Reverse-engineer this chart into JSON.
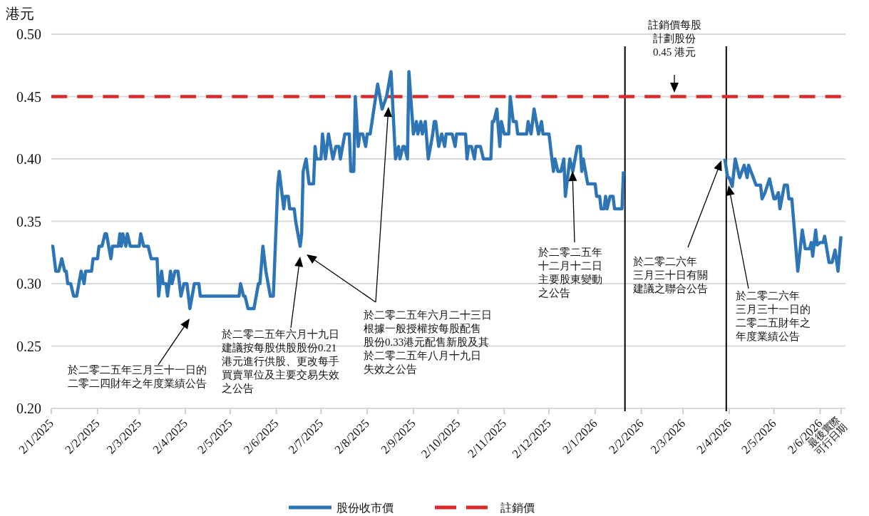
{
  "chart_data": {
    "type": "line",
    "ylabel": "港元",
    "xlim": [
      "2025-01-02",
      "2026-06-19"
    ],
    "xticks": [
      {
        "value": "2025-01-02",
        "label": "2/1/2025"
      },
      {
        "value": "2025-02-02",
        "label": "2/2/2025"
      },
      {
        "value": "2025-03-02",
        "label": "2/3/2025"
      },
      {
        "value": "2025-04-02",
        "label": "2/4/2025"
      },
      {
        "value": "2025-05-02",
        "label": "2/5/2025"
      },
      {
        "value": "2025-06-02",
        "label": "2/6/2025"
      },
      {
        "value": "2025-07-02",
        "label": "2/7/2025"
      },
      {
        "value": "2025-08-02",
        "label": "2/8/2025"
      },
      {
        "value": "2025-09-02",
        "label": "2/9/2025"
      },
      {
        "value": "2025-10-02",
        "label": "2/10/2025"
      },
      {
        "value": "2025-11-02",
        "label": "2/11/2025"
      },
      {
        "value": "2025-12-02",
        "label": "2/12/2025"
      },
      {
        "value": "2026-01-02",
        "label": "2/1/2026"
      },
      {
        "value": "2026-02-02",
        "label": "2/2/2026"
      },
      {
        "value": "2026-03-02",
        "label": "2/3/2026"
      },
      {
        "value": "2026-04-02",
        "label": "2/4/2026"
      },
      {
        "value": "2026-05-02",
        "label": "2/5/2026"
      },
      {
        "value": "2026-06-02",
        "label": "2/6/2026"
      },
      {
        "value": "2026-06-16",
        "label": "最後實際\n可行日期"
      }
    ],
    "ylim": [
      0.2,
      0.5
    ],
    "yticks": [
      {
        "value": 0.2,
        "label": "0.20"
      },
      {
        "value": 0.25,
        "label": "0.25"
      },
      {
        "value": 0.3,
        "label": "0.30"
      },
      {
        "value": 0.35,
        "label": "0.35"
      },
      {
        "value": 0.4,
        "label": "0.40"
      },
      {
        "value": 0.45,
        "label": "0.45"
      },
      {
        "value": 0.5,
        "label": "0.50"
      }
    ],
    "grid": "y",
    "legend": "bottom",
    "marker": "none",
    "series": [
      {
        "name": "股份收市價",
        "color": "#2e75b6",
        "line_style": "solid",
        "x": [
          "2025-01-02",
          "2025-01-03",
          "2025-01-05",
          "2025-01-07",
          "2025-01-09",
          "2025-01-11",
          "2025-01-12",
          "2025-01-13",
          "2025-01-15",
          "2025-01-17",
          "2025-01-19",
          "2025-01-22",
          "2025-01-24",
          "2025-01-25",
          "2025-01-29",
          "2025-01-30",
          "2025-02-02",
          "2025-02-03",
          "2025-02-05",
          "2025-02-07",
          "2025-02-08",
          "2025-02-11",
          "2025-02-12",
          "2025-02-16",
          "2025-02-17",
          "2025-02-18",
          "2025-02-19",
          "2025-02-21",
          "2025-02-22",
          "2025-02-24",
          "2025-03-02",
          "2025-03-03",
          "2025-03-05",
          "2025-03-08",
          "2025-03-10",
          "2025-03-14",
          "2025-03-15",
          "2025-03-17",
          "2025-03-18",
          "2025-03-20",
          "2025-03-21",
          "2025-03-23",
          "2025-03-24",
          "2025-03-26",
          "2025-03-28",
          "2025-03-30",
          "2025-04-01",
          "2025-04-03",
          "2025-04-05",
          "2025-04-08",
          "2025-04-11",
          "2025-04-12",
          "2025-05-08",
          "2025-05-09",
          "2025-05-11",
          "2025-05-12",
          "2025-05-14",
          "2025-05-18",
          "2025-05-21",
          "2025-05-22",
          "2025-05-24",
          "2025-05-26",
          "2025-05-29",
          "2025-05-31",
          "2025-06-03",
          "2025-06-04",
          "2025-06-07",
          "2025-06-08",
          "2025-06-10",
          "2025-06-11",
          "2025-06-14",
          "2025-06-15",
          "2025-06-18",
          "2025-06-19",
          "2025-06-20",
          "2025-06-22",
          "2025-06-24",
          "2025-06-27",
          "2025-06-28",
          "2025-06-29",
          "2025-07-02",
          "2025-07-03",
          "2025-07-05",
          "2025-07-07",
          "2025-07-10",
          "2025-07-12",
          "2025-07-14",
          "2025-07-15",
          "2025-07-18",
          "2025-07-21",
          "2025-07-22",
          "2025-07-24",
          "2025-07-25",
          "2025-07-27",
          "2025-07-28",
          "2025-07-30",
          "2025-08-01",
          "2025-08-02",
          "2025-08-04",
          "2025-08-09",
          "2025-08-12",
          "2025-08-15",
          "2025-08-18",
          "2025-08-21",
          "2025-08-23",
          "2025-08-24",
          "2025-08-26",
          "2025-08-27",
          "2025-08-29",
          "2025-08-30",
          "2025-09-02",
          "2025-09-04",
          "2025-09-05",
          "2025-09-07",
          "2025-09-08",
          "2025-09-10",
          "2025-09-12",
          "2025-09-15",
          "2025-09-16",
          "2025-09-17",
          "2025-09-19",
          "2025-09-21",
          "2025-09-23",
          "2025-09-24",
          "2025-09-28",
          "2025-09-30",
          "2025-10-01",
          "2025-10-07",
          "2025-10-08",
          "2025-10-09",
          "2025-10-11",
          "2025-10-13",
          "2025-10-14",
          "2025-10-17",
          "2025-10-19",
          "2025-10-24",
          "2025-10-25",
          "2025-10-26",
          "2025-10-28",
          "2025-10-30",
          "2025-10-31",
          "2025-11-02",
          "2025-11-05",
          "2025-11-06",
          "2025-11-08",
          "2025-11-10",
          "2025-11-11",
          "2025-11-17",
          "2025-11-18",
          "2025-11-20",
          "2025-11-22",
          "2025-11-25",
          "2025-11-27",
          "2025-11-28",
          "2025-12-02",
          "2025-12-03",
          "2025-12-05",
          "2025-12-06",
          "2025-12-08",
          "2025-12-10",
          "2025-12-12",
          "2025-12-13",
          "2025-12-16",
          "2025-12-18",
          "2025-12-21",
          "2025-12-23",
          "2025-12-24",
          "2025-12-25",
          "2025-12-28",
          "2026-01-02",
          "2026-01-03",
          "2026-01-05",
          "2026-01-06",
          "2026-01-08",
          "2026-01-09",
          "2026-01-10",
          "2026-01-12",
          "2026-01-14",
          "2026-01-15",
          "2026-01-20",
          "2026-01-21",
          "2026-02-25",
          "2026-03-30",
          "2026-04-01",
          "2026-04-02",
          "2026-04-04",
          "2026-04-06",
          "2026-04-09",
          "2026-04-12",
          "2026-04-14",
          "2026-04-15",
          "2026-04-20",
          "2026-04-23",
          "2026-04-24",
          "2026-04-26",
          "2026-04-29",
          "2026-05-02",
          "2026-05-03",
          "2026-05-05",
          "2026-05-06",
          "2026-05-09",
          "2026-05-11",
          "2026-05-12",
          "2026-05-14",
          "2026-05-18",
          "2026-05-21",
          "2026-05-23",
          "2026-05-26",
          "2026-05-27",
          "2026-05-28",
          "2026-05-30",
          "2026-05-31",
          "2026-06-02",
          "2026-06-04",
          "2026-06-05",
          "2026-06-08",
          "2026-06-10",
          "2026-06-12",
          "2026-06-14",
          "2026-06-16"
        ],
        "values": [
          0.33,
          0.33,
          0.31,
          0.31,
          0.32,
          0.31,
          0.31,
          0.3,
          0.3,
          0.29,
          0.29,
          0.31,
          0.3,
          0.31,
          0.31,
          0.32,
          0.32,
          0.33,
          0.33,
          0.34,
          0.34,
          0.32,
          0.33,
          0.33,
          0.34,
          0.33,
          0.34,
          0.33,
          0.34,
          0.33,
          0.33,
          0.34,
          0.33,
          0.33,
          0.32,
          0.32,
          0.29,
          0.31,
          0.3,
          0.3,
          0.29,
          0.31,
          0.3,
          0.31,
          0.31,
          0.29,
          0.3,
          0.3,
          0.28,
          0.3,
          0.3,
          0.29,
          0.29,
          0.3,
          0.29,
          0.29,
          0.28,
          0.28,
          0.3,
          0.3,
          0.33,
          0.31,
          0.29,
          0.29,
          0.38,
          0.39,
          0.36,
          0.37,
          0.37,
          0.36,
          0.36,
          0.35,
          0.33,
          0.34,
          0.39,
          0.4,
          0.38,
          0.38,
          0.41,
          0.4,
          0.4,
          0.42,
          0.4,
          0.42,
          0.4,
          0.41,
          0.41,
          0.4,
          0.42,
          0.42,
          0.39,
          0.39,
          0.45,
          0.41,
          0.42,
          0.42,
          0.41,
          0.42,
          0.42,
          0.46,
          0.44,
          0.45,
          0.47,
          0.4,
          0.41,
          0.4,
          0.41,
          0.41,
          0.4,
          0.47,
          0.42,
          0.43,
          0.42,
          0.43,
          0.42,
          0.43,
          0.4,
          0.42,
          0.43,
          0.43,
          0.41,
          0.42,
          0.41,
          0.42,
          0.42,
          0.41,
          0.42,
          0.42,
          0.4,
          0.41,
          0.41,
          0.4,
          0.41,
          0.41,
          0.4,
          0.4,
          0.43,
          0.43,
          0.44,
          0.41,
          0.43,
          0.42,
          0.42,
          0.45,
          0.43,
          0.43,
          0.42,
          0.42,
          0.43,
          0.42,
          0.44,
          0.42,
          0.43,
          0.42,
          0.42,
          0.41,
          0.39,
          0.4,
          0.39,
          0.39,
          0.4,
          0.37,
          0.4,
          0.39,
          0.41,
          0.41,
          0.39,
          0.4,
          0.38,
          0.38,
          0.37,
          0.37,
          0.36,
          0.36,
          0.37,
          0.36,
          0.37,
          0.37,
          0.36,
          0.36,
          0.39,
          null,
          0.4,
          0.385,
          0.385,
          0.378,
          0.4,
          0.385,
          0.395,
          0.385,
          0.395,
          0.379,
          0.379,
          0.368,
          0.373,
          0.384,
          0.368,
          0.368,
          0.373,
          0.36,
          0.379,
          0.379,
          0.368,
          0.368,
          0.31,
          0.343,
          0.328,
          0.328,
          0.333,
          0.322,
          0.343,
          0.331,
          0.333,
          0.333,
          0.338,
          0.317,
          0.317,
          0.327,
          0.31,
          0.338
        ]
      },
      {
        "name": "註銷價",
        "color": "#dc2a2a",
        "line_style": "dashed",
        "x": [
          "2025-01-02",
          "2026-06-16"
        ],
        "values": [
          0.45,
          0.45
        ]
      }
    ],
    "ref_lines": [
      {
        "axis": "x",
        "value": "2026-01-22",
        "color": "#000000"
      },
      {
        "axis": "x",
        "value": "2026-03-31",
        "color": "#000000"
      }
    ],
    "annotations": [
      "於二零二五年三月三十一日的二零二四財年之年度業績公告",
      "於二零二五年六月十九日建議按每股供股股份0.21港元進行供股、更改每手買賣單位及主要交易失效之公告",
      "於二零二五年六月二十三日根據一般授權按每股配售股份0.33港元配售新股及其於二零二五年八月十九日失效之公告",
      "於二零二五年十二月十二日主要股東變動之公告",
      "註銷價每股計劃股份0.45 港元",
      "於二零二六年三月三十日有關建議之聯合公告",
      "於二零二六年三月三十一日的二零二五財年之年度業績公告"
    ]
  }
}
